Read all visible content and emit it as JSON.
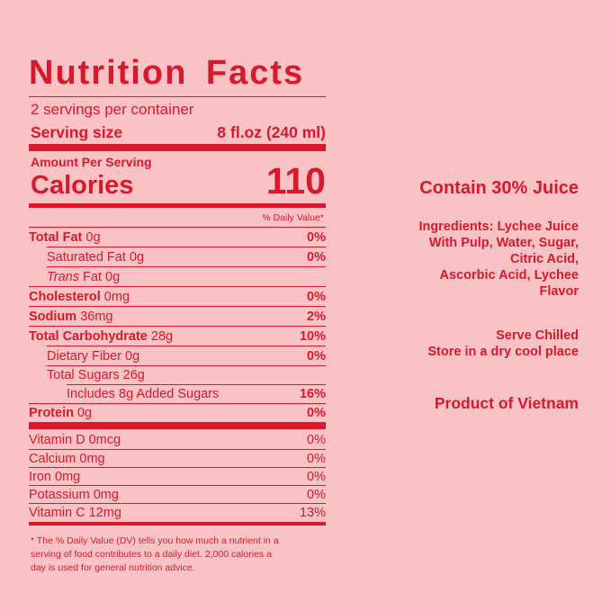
{
  "label": {
    "title": "Nutrition Facts",
    "servings": "2 servings per container",
    "serving_size": {
      "label": "Serving size",
      "value": "8 fl.oz (240 ml)"
    },
    "amount_per_serving": "Amount Per Serving",
    "calories": {
      "label": "Calories",
      "value": "110"
    },
    "dv_header": "% Daily Value*",
    "rows": [
      {
        "name": "Total Fat",
        "amount": "0g",
        "dv": "0%"
      },
      {
        "name": "Saturated Fat 0g",
        "dv": "0%"
      },
      {
        "italic": "Trans",
        "name": "Fat 0g"
      },
      {
        "name": "Cholesterol",
        "amount": "0mg",
        "dv": "0%"
      },
      {
        "name": "Sodium",
        "amount": "36mg",
        "dv": "2%"
      },
      {
        "name": "Total Carbohydrate",
        "amount": "28g",
        "dv": "10%"
      },
      {
        "name": "Dietary Fiber 0g",
        "dv": "0%"
      },
      {
        "name": "Total Sugars 26g"
      },
      {
        "name": "Includes 8g Added Sugars",
        "dv": "16%"
      },
      {
        "name": "Protein",
        "amount": "0g",
        "dv": "0%"
      }
    ],
    "vitamins": [
      {
        "name": "Vitamin D 0mcg",
        "dv": "0%"
      },
      {
        "name": "Calcium 0mg",
        "dv": "0%"
      },
      {
        "name": "Iron 0mg",
        "dv": "0%"
      },
      {
        "name": "Potassium 0mg",
        "dv": "0%"
      },
      {
        "name": "Vitamin C 12mg",
        "dv": "13%"
      }
    ],
    "footnote": [
      "* The % Daily Value (DV) tells you how much a nutrient in a",
      "serving of food contributes to a daily diet. 2,000 calories a",
      "day is used for general nutrition advice."
    ]
  },
  "side": {
    "juice": "Contain 30% Juice",
    "ingredients": [
      "Ingredients: Lychee Juice",
      "With Pulp, Water, Sugar,",
      "Citric Acid,",
      "Ascorbic Acid, Lychee",
      "Flavor"
    ],
    "storage": [
      "Serve Chilled",
      "Store in a dry cool place"
    ],
    "origin": "Product of Vietnam"
  }
}
